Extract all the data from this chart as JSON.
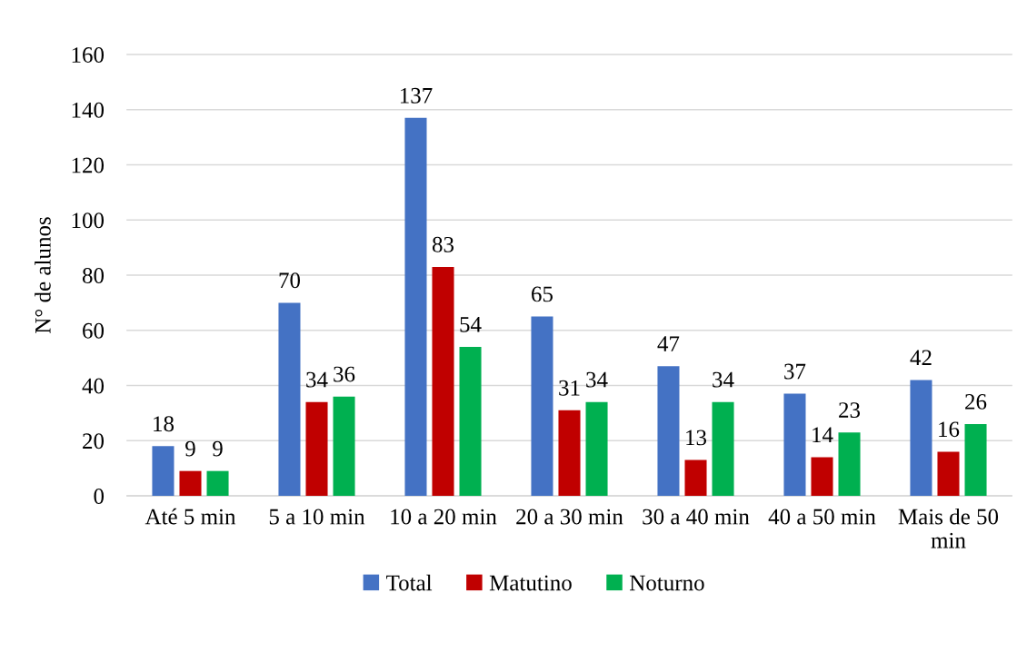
{
  "chart_data": {
    "type": "bar",
    "ylabel": "N° de alunos",
    "categories": [
      "Até 5 min",
      "5 a 10 min",
      "10 a 20 min",
      "20 a 30 min",
      "30 a 40 min",
      "40 a 50 min",
      "Mais de 50\nmin"
    ],
    "series": [
      {
        "name": "Total",
        "color": "#4472c4",
        "values": [
          18,
          70,
          137,
          65,
          47,
          37,
          42
        ]
      },
      {
        "name": "Matutino",
        "color": "#c00000",
        "values": [
          9,
          34,
          83,
          31,
          13,
          14,
          16
        ]
      },
      {
        "name": "Noturno",
        "color": "#00b050",
        "values": [
          9,
          36,
          54,
          34,
          34,
          23,
          26
        ]
      }
    ],
    "ylim": [
      0,
      160
    ],
    "yticks": [
      0,
      20,
      40,
      60,
      80,
      100,
      120,
      140,
      160
    ],
    "grid": "y",
    "legend": "bottom",
    "data_labels": true
  }
}
